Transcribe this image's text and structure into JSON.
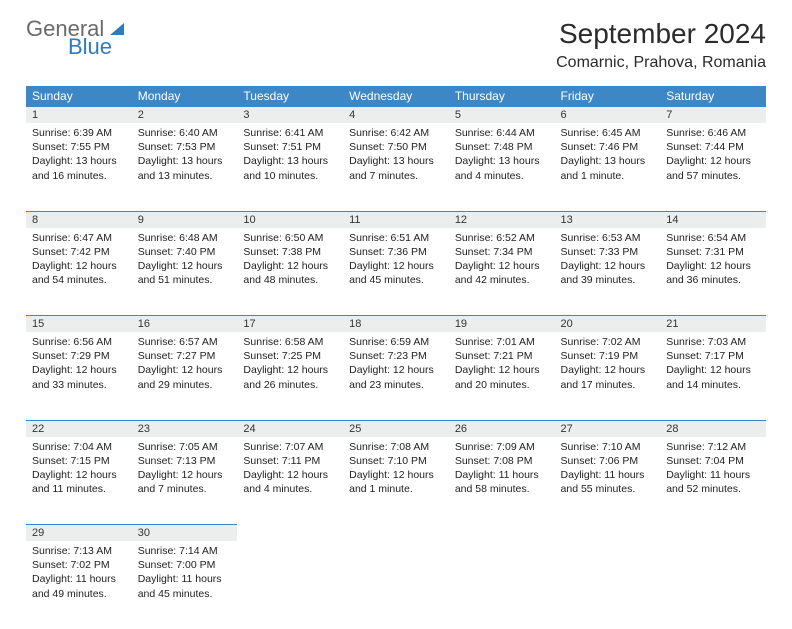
{
  "logo": {
    "general": "General",
    "blue": "Blue"
  },
  "title": "September 2024",
  "location": "Comarnic, Prahova, Romania",
  "colors": {
    "header_bg": "#3d87c7",
    "header_text": "#ffffff",
    "daynum_bg": "#eceeee",
    "daynum_border": "#3d87c7",
    "body_text": "#222222",
    "page_bg": "#ffffff",
    "logo_gray": "#6a6a6a",
    "logo_blue": "#2f7bbf"
  },
  "weekdays": [
    "Sunday",
    "Monday",
    "Tuesday",
    "Wednesday",
    "Thursday",
    "Friday",
    "Saturday"
  ],
  "weeks": [
    [
      {
        "d": "1",
        "sr": "6:39 AM",
        "ss": "7:55 PM",
        "dl": "13 hours and 16 minutes."
      },
      {
        "d": "2",
        "sr": "6:40 AM",
        "ss": "7:53 PM",
        "dl": "13 hours and 13 minutes."
      },
      {
        "d": "3",
        "sr": "6:41 AM",
        "ss": "7:51 PM",
        "dl": "13 hours and 10 minutes."
      },
      {
        "d": "4",
        "sr": "6:42 AM",
        "ss": "7:50 PM",
        "dl": "13 hours and 7 minutes."
      },
      {
        "d": "5",
        "sr": "6:44 AM",
        "ss": "7:48 PM",
        "dl": "13 hours and 4 minutes."
      },
      {
        "d": "6",
        "sr": "6:45 AM",
        "ss": "7:46 PM",
        "dl": "13 hours and 1 minute."
      },
      {
        "d": "7",
        "sr": "6:46 AM",
        "ss": "7:44 PM",
        "dl": "12 hours and 57 minutes."
      }
    ],
    [
      {
        "d": "8",
        "sr": "6:47 AM",
        "ss": "7:42 PM",
        "dl": "12 hours and 54 minutes."
      },
      {
        "d": "9",
        "sr": "6:48 AM",
        "ss": "7:40 PM",
        "dl": "12 hours and 51 minutes."
      },
      {
        "d": "10",
        "sr": "6:50 AM",
        "ss": "7:38 PM",
        "dl": "12 hours and 48 minutes."
      },
      {
        "d": "11",
        "sr": "6:51 AM",
        "ss": "7:36 PM",
        "dl": "12 hours and 45 minutes."
      },
      {
        "d": "12",
        "sr": "6:52 AM",
        "ss": "7:34 PM",
        "dl": "12 hours and 42 minutes."
      },
      {
        "d": "13",
        "sr": "6:53 AM",
        "ss": "7:33 PM",
        "dl": "12 hours and 39 minutes."
      },
      {
        "d": "14",
        "sr": "6:54 AM",
        "ss": "7:31 PM",
        "dl": "12 hours and 36 minutes."
      }
    ],
    [
      {
        "d": "15",
        "sr": "6:56 AM",
        "ss": "7:29 PM",
        "dl": "12 hours and 33 minutes."
      },
      {
        "d": "16",
        "sr": "6:57 AM",
        "ss": "7:27 PM",
        "dl": "12 hours and 29 minutes."
      },
      {
        "d": "17",
        "sr": "6:58 AM",
        "ss": "7:25 PM",
        "dl": "12 hours and 26 minutes."
      },
      {
        "d": "18",
        "sr": "6:59 AM",
        "ss": "7:23 PM",
        "dl": "12 hours and 23 minutes."
      },
      {
        "d": "19",
        "sr": "7:01 AM",
        "ss": "7:21 PM",
        "dl": "12 hours and 20 minutes."
      },
      {
        "d": "20",
        "sr": "7:02 AM",
        "ss": "7:19 PM",
        "dl": "12 hours and 17 minutes."
      },
      {
        "d": "21",
        "sr": "7:03 AM",
        "ss": "7:17 PM",
        "dl": "12 hours and 14 minutes."
      }
    ],
    [
      {
        "d": "22",
        "sr": "7:04 AM",
        "ss": "7:15 PM",
        "dl": "12 hours and 11 minutes."
      },
      {
        "d": "23",
        "sr": "7:05 AM",
        "ss": "7:13 PM",
        "dl": "12 hours and 7 minutes."
      },
      {
        "d": "24",
        "sr": "7:07 AM",
        "ss": "7:11 PM",
        "dl": "12 hours and 4 minutes."
      },
      {
        "d": "25",
        "sr": "7:08 AM",
        "ss": "7:10 PM",
        "dl": "12 hours and 1 minute."
      },
      {
        "d": "26",
        "sr": "7:09 AM",
        "ss": "7:08 PM",
        "dl": "11 hours and 58 minutes."
      },
      {
        "d": "27",
        "sr": "7:10 AM",
        "ss": "7:06 PM",
        "dl": "11 hours and 55 minutes."
      },
      {
        "d": "28",
        "sr": "7:12 AM",
        "ss": "7:04 PM",
        "dl": "11 hours and 52 minutes."
      }
    ],
    [
      {
        "d": "29",
        "sr": "7:13 AM",
        "ss": "7:02 PM",
        "dl": "11 hours and 49 minutes."
      },
      {
        "d": "30",
        "sr": "7:14 AM",
        "ss": "7:00 PM",
        "dl": "11 hours and 45 minutes."
      },
      null,
      null,
      null,
      null,
      null
    ]
  ],
  "labels": {
    "sunrise": "Sunrise:",
    "sunset": "Sunset:",
    "daylight": "Daylight:"
  }
}
